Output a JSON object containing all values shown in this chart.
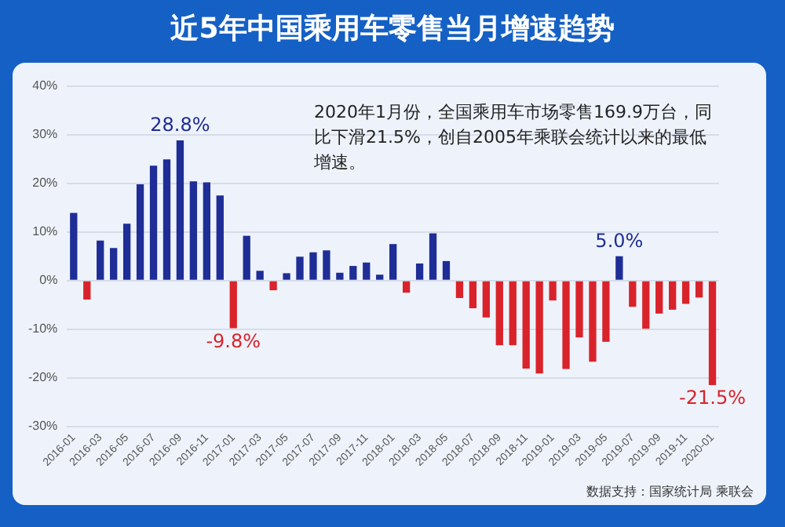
{
  "chart_data": {
    "type": "bar",
    "title": "近5年中国乘用车零售当月增速趋势",
    "categories": [
      "2016-01",
      null,
      "2016-03",
      null,
      "2016-05",
      null,
      "2016-07",
      null,
      "2016-09",
      null,
      "2016-11",
      null,
      "2017-01",
      null,
      "2017-03",
      null,
      "2017-05",
      null,
      "2017-07",
      null,
      "2017-09",
      null,
      "2017-11",
      null,
      "2018-01",
      null,
      "2018-03",
      null,
      "2018-05",
      null,
      "2018-07",
      null,
      "2018-09",
      null,
      "2018-11",
      null,
      "2019-01",
      null,
      "2019-03",
      null,
      "2019-05",
      null,
      "2019-07",
      null,
      "2019-09",
      null,
      "2019-11",
      null,
      "2020-01"
    ],
    "values": [
      13.9,
      -3.9,
      8.2,
      6.7,
      11.7,
      19.8,
      23.6,
      24.9,
      28.8,
      20.4,
      20.2,
      17.5,
      -9.8,
      9.2,
      2.0,
      -2.0,
      1.5,
      4.9,
      5.8,
      6.2,
      1.6,
      3.0,
      3.7,
      1.2,
      7.5,
      -2.5,
      3.5,
      9.7,
      4.0,
      -3.6,
      -5.7,
      -7.6,
      -13.3,
      -13.3,
      -18.1,
      -19.1,
      -4.1,
      -18.2,
      -11.7,
      -16.7,
      -12.6,
      5.0,
      -5.4,
      -9.9,
      -6.8,
      -6.0,
      -4.8,
      -3.5,
      -21.5
    ],
    "colors": [
      "#1f2d96",
      "#d9232b",
      "#1f2d96",
      "#1f2d96",
      "#1f2d96",
      "#1f2d96",
      "#1f2d96",
      "#1f2d96",
      "#1f2d96",
      "#1f2d96",
      "#1f2d96",
      "#1f2d96",
      "#d9232b",
      "#1f2d96",
      "#1f2d96",
      "#d9232b",
      "#1f2d96",
      "#1f2d96",
      "#1f2d96",
      "#1f2d96",
      "#1f2d96",
      "#1f2d96",
      "#1f2d96",
      "#1f2d96",
      "#1f2d96",
      "#d9232b",
      "#1f2d96",
      "#1f2d96",
      "#1f2d96",
      "#d9232b",
      "#d9232b",
      "#d9232b",
      "#d9232b",
      "#d9232b",
      "#d9232b",
      "#d9232b",
      "#d9232b",
      "#d9232b",
      "#d9232b",
      "#d9232b",
      "#d9232b",
      "#1f2d96",
      "#d9232b",
      "#d9232b",
      "#d9232b",
      "#d9232b",
      "#d9232b",
      "#d9232b",
      "#d9232b"
    ],
    "value_labels": [
      null,
      null,
      null,
      null,
      null,
      null,
      null,
      null,
      "28.8%",
      null,
      null,
      null,
      "-9.8%",
      null,
      null,
      null,
      null,
      null,
      null,
      null,
      null,
      null,
      null,
      null,
      null,
      null,
      null,
      null,
      null,
      null,
      null,
      null,
      null,
      null,
      null,
      null,
      null,
      null,
      null,
      null,
      null,
      "5.0%",
      null,
      null,
      null,
      null,
      null,
      null,
      "-21.5%"
    ],
    "ylim": [
      -30,
      40
    ],
    "yticks": [
      {
        "value": -30,
        "label": "-30%"
      },
      {
        "value": -20,
        "label": "-20%"
      },
      {
        "value": -10,
        "label": "-10%"
      },
      {
        "value": 0,
        "label": "0%"
      },
      {
        "value": 10,
        "label": "10%"
      },
      {
        "value": 20,
        "label": "20%"
      },
      {
        "value": 30,
        "label": "30%"
      },
      {
        "value": 40,
        "label": "40%"
      }
    ],
    "grid": "y",
    "legend": false,
    "annotations": [
      "2020年1月份，全国乘用车市场零售169.9万台，同比下滑21.5%，创自2005年乘联会统计以来的最低增速。",
      "数据支持：国家统计局 乘联会"
    ]
  }
}
